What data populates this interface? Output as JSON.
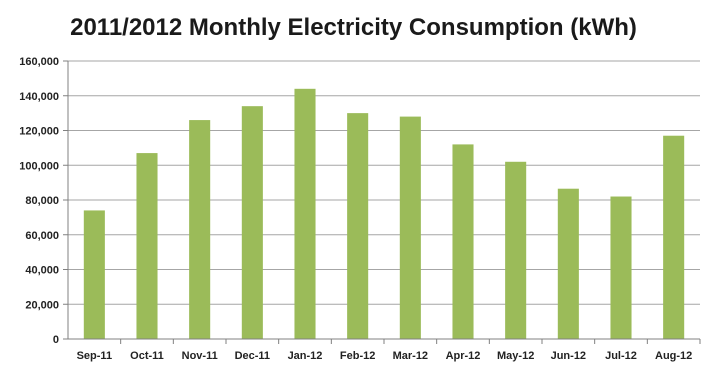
{
  "chart_data": {
    "type": "bar",
    "title": "2011/2012 Monthly Electricity Consumption (kWh)",
    "xlabel": "",
    "ylabel": "",
    "categories": [
      "Sep-11",
      "Oct-11",
      "Nov-11",
      "Dec-11",
      "Jan-12",
      "Feb-12",
      "Mar-12",
      "Apr-12",
      "May-12",
      "Jun-12",
      "Jul-12",
      "Aug-12"
    ],
    "values": [
      74000,
      107000,
      126000,
      134000,
      144000,
      130000,
      128000,
      112000,
      102000,
      86500,
      82000,
      117000
    ],
    "ylim": [
      0,
      160000
    ],
    "yticks": [
      "0",
      "20,000",
      "40,000",
      "60,000",
      "80,000",
      "100,000",
      "120,000",
      "140,000",
      "160,000"
    ],
    "grid": true,
    "legend": "none",
    "bar_color": "#9bbb59",
    "grid_color": "#a6a6a6"
  }
}
